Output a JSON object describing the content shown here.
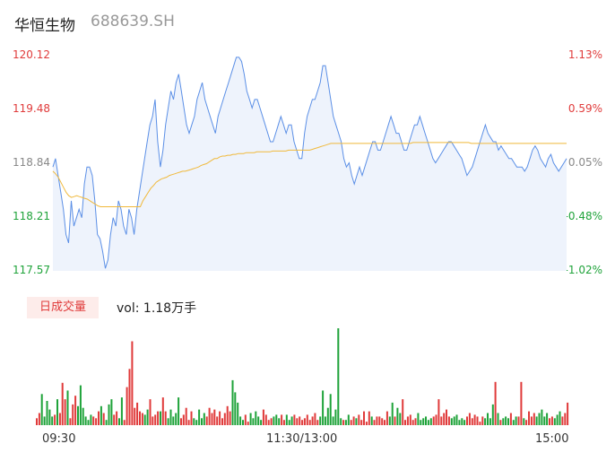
{
  "header": {
    "name": "华恒生物",
    "code": "688639.SH"
  },
  "colors": {
    "up": "#e03b3b",
    "down": "#1fa33a",
    "neutral": "#888888",
    "price_line": "#5b8fe6",
    "avg_line": "#f0b93b",
    "area_fill": "#eef3fc"
  },
  "chart_data": [
    {
      "type": "line",
      "title": "",
      "y_ticks_left": [
        "120.12",
        "119.48",
        "118.84",
        "118.21",
        "117.57"
      ],
      "y_ticks_right": [
        "1.13%",
        "0.59%",
        "0.05%",
        "-0.48%",
        "-1.02%"
      ],
      "ylim": [
        117.57,
        120.12
      ],
      "prev_close": 118.78,
      "x_ticks": [
        "09:30",
        "11:30/13:00",
        "15:00"
      ],
      "series": [
        {
          "values": [
            118.8,
            118.9,
            118.7,
            118.5,
            118.3,
            118.0,
            117.9,
            118.4,
            118.1,
            118.2,
            118.3,
            118.2,
            118.6,
            118.8,
            118.8,
            118.7,
            118.4,
            118.0,
            117.95,
            117.8,
            117.6,
            117.7,
            118.0,
            118.2,
            118.1,
            118.4,
            118.3,
            118.1,
            118.0,
            118.3,
            118.2,
            118.0,
            118.3,
            118.5,
            118.7,
            118.9,
            119.1,
            119.3,
            119.4,
            119.6,
            119.1,
            118.8,
            119.0,
            119.3,
            119.5,
            119.7,
            119.6,
            119.8,
            119.9,
            119.7,
            119.5,
            119.3,
            119.2,
            119.3,
            119.4,
            119.6,
            119.7,
            119.8,
            119.6,
            119.5,
            119.4,
            119.3,
            119.2,
            119.4,
            119.5,
            119.6,
            119.7,
            119.8,
            119.9,
            120.0,
            120.1,
            120.1,
            120.05,
            119.9,
            119.7,
            119.6,
            119.5,
            119.6,
            119.6,
            119.5,
            119.4,
            119.3,
            119.2,
            119.1,
            119.1,
            119.2,
            119.3,
            119.4,
            119.3,
            119.2,
            119.3,
            119.3,
            119.1,
            119.0,
            118.9,
            118.9,
            119.2,
            119.4,
            119.5,
            119.6,
            119.6,
            119.7,
            119.8,
            120.0,
            120.0,
            119.8,
            119.6,
            119.4,
            119.3,
            119.2,
            119.1,
            118.9,
            118.8,
            118.85,
            118.7,
            118.6,
            118.7,
            118.8,
            118.7,
            118.8,
            118.9,
            119.0,
            119.1,
            119.1,
            119.0,
            119.0,
            119.1,
            119.2,
            119.3,
            119.4,
            119.3,
            119.2,
            119.2,
            119.1,
            119.0,
            119.0,
            119.1,
            119.2,
            119.3,
            119.3,
            119.4,
            119.3,
            119.2,
            119.1,
            119.0,
            118.9,
            118.85,
            118.9,
            118.95,
            119.0,
            119.05,
            119.1,
            119.1,
            119.05,
            119.0,
            118.95,
            118.9,
            118.8,
            118.7,
            118.75,
            118.8,
            118.9,
            119.0,
            119.1,
            119.2,
            119.3,
            119.2,
            119.15,
            119.1,
            119.1,
            119.0,
            119.05,
            119.0,
            118.95,
            118.9,
            118.9,
            118.85,
            118.8,
            118.8,
            118.8,
            118.75,
            118.8,
            118.9,
            119.0,
            119.05,
            119.0,
            118.9,
            118.85,
            118.8,
            118.9,
            118.95,
            118.85,
            118.8,
            118.75,
            118.8,
            118.85,
            118.9
          ],
          "color": "#5b8fe6"
        },
        {
          "values": [
            118.75,
            118.72,
            118.68,
            118.62,
            118.56,
            118.5,
            118.46,
            118.44,
            118.45,
            118.46,
            118.45,
            118.44,
            118.43,
            118.42,
            118.4,
            118.38,
            118.36,
            118.34,
            118.33,
            118.33,
            118.33,
            118.33,
            118.33,
            118.33,
            118.33,
            118.33,
            118.33,
            118.33,
            118.33,
            118.33,
            118.33,
            118.33,
            118.33,
            118.33,
            118.4,
            118.45,
            118.5,
            118.55,
            118.58,
            118.62,
            118.64,
            118.66,
            118.67,
            118.68,
            118.7,
            118.71,
            118.72,
            118.73,
            118.74,
            118.75,
            118.75,
            118.76,
            118.77,
            118.78,
            118.79,
            118.8,
            118.82,
            118.83,
            118.84,
            118.86,
            118.88,
            118.9,
            118.9,
            118.92,
            118.93,
            118.93,
            118.94,
            118.94,
            118.95,
            118.95,
            118.96,
            118.96,
            118.96,
            118.97,
            118.97,
            118.97,
            118.97,
            118.98,
            118.98,
            118.98,
            118.98,
            118.98,
            118.98,
            118.99,
            118.99,
            118.99,
            118.99,
            118.99,
            118.99,
            119.0,
            119.0,
            119.0,
            119.0,
            119.0,
            119.0,
            119.0,
            119.0,
            119.0,
            119.01,
            119.02,
            119.03,
            119.04,
            119.05,
            119.06,
            119.07,
            119.08,
            119.08,
            119.08,
            119.08,
            119.08,
            119.08,
            119.08,
            119.08,
            119.08,
            119.08,
            119.08,
            119.08,
            119.08,
            119.08,
            119.08,
            119.08,
            119.08,
            119.08,
            119.08,
            119.08,
            119.08,
            119.08,
            119.08,
            119.08,
            119.08,
            119.08,
            119.08,
            119.08,
            119.08,
            119.08,
            119.08,
            119.09,
            119.09,
            119.09,
            119.09,
            119.09,
            119.09,
            119.09,
            119.09,
            119.09,
            119.09,
            119.09,
            119.09,
            119.09,
            119.09,
            119.09,
            119.09,
            119.09,
            119.09,
            119.09,
            119.09,
            119.09,
            119.09,
            119.08,
            119.08,
            119.08,
            119.08,
            119.08,
            119.08,
            119.08,
            119.08,
            119.08,
            119.08,
            119.08,
            119.08,
            119.08,
            119.08,
            119.08,
            119.08,
            119.08,
            119.08,
            119.08,
            119.08,
            119.08,
            119.08,
            119.08,
            119.08,
            119.08,
            119.08,
            119.08,
            119.08,
            119.08,
            119.08,
            119.08,
            119.08,
            119.08,
            119.08,
            119.08,
            119.08,
            119.08
          ],
          "color": "#f0b93b"
        }
      ]
    },
    {
      "type": "bar",
      "title": "",
      "label": "日成交量",
      "summary": "vol: 1.18万手",
      "values": [
        8,
        14,
        36,
        10,
        28,
        18,
        10,
        12,
        30,
        14,
        49,
        30,
        40,
        8,
        24,
        34,
        22,
        46,
        20,
        10,
        6,
        12,
        10,
        8,
        16,
        22,
        14,
        6,
        24,
        30,
        12,
        16,
        8,
        32,
        6,
        44,
        65,
        97,
        20,
        26,
        16,
        14,
        12,
        18,
        30,
        10,
        12,
        16,
        16,
        32,
        16,
        8,
        18,
        10,
        14,
        32,
        8,
        12,
        20,
        6,
        16,
        8,
        6,
        18,
        8,
        14,
        10,
        20,
        14,
        18,
        10,
        16,
        8,
        14,
        22,
        16,
        52,
        38,
        26,
        10,
        6,
        12,
        4,
        14,
        8,
        16,
        10,
        6,
        18,
        12,
        6,
        8,
        10,
        12,
        8,
        12,
        6,
        12,
        6,
        10,
        12,
        8,
        10,
        6,
        8,
        12,
        6,
        10,
        14,
        6,
        10,
        40,
        10,
        20,
        36,
        10,
        18,
        112,
        8,
        6,
        6,
        12,
        6,
        10,
        8,
        12,
        6,
        16,
        4,
        16,
        10,
        6,
        10,
        10,
        8,
        6,
        16,
        10,
        26,
        10,
        20,
        14,
        30,
        6,
        10,
        12,
        6,
        8,
        14,
        6,
        8,
        10,
        6,
        8,
        10,
        12,
        30,
        10,
        14,
        18,
        10,
        8,
        10,
        12,
        6,
        8,
        6,
        10,
        14,
        8,
        12,
        10,
        4,
        10,
        8,
        14,
        8,
        24,
        50,
        14,
        6,
        8,
        10,
        8,
        14,
        6,
        10,
        10,
        50,
        8,
        6,
        16,
        10,
        14,
        10,
        14,
        18,
        10,
        14,
        8,
        10,
        8,
        12,
        16,
        10,
        14,
        26
      ]
    }
  ]
}
